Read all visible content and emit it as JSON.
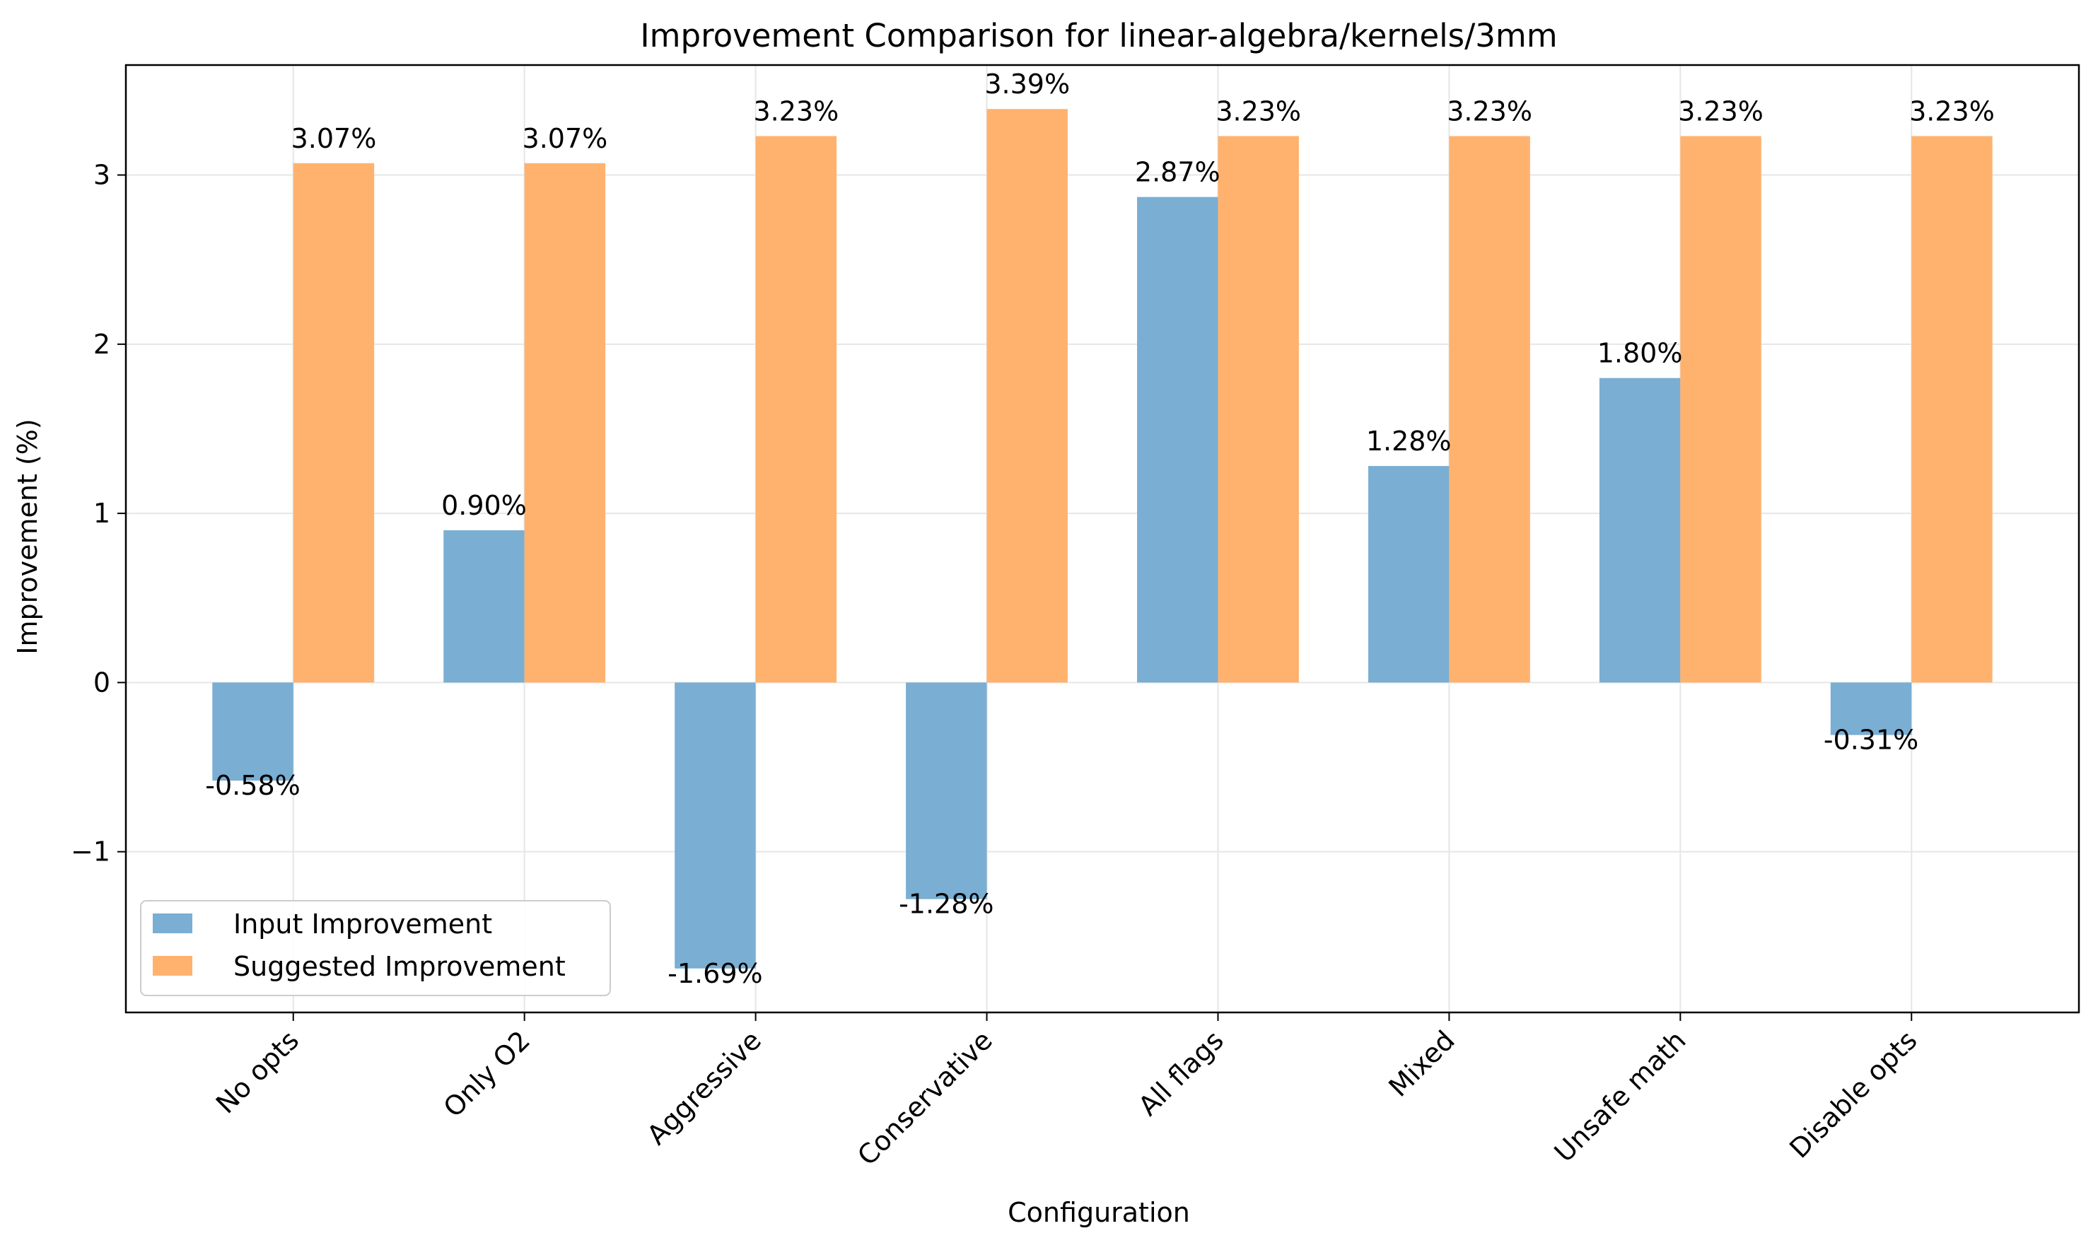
{
  "chart_data": {
    "type": "bar",
    "title": "Improvement Comparison for linear-algebra/kernels/3mm",
    "xlabel": "Configuration",
    "ylabel": "Improvement (%)",
    "categories": [
      "No opts",
      "Only O2",
      "Aggressive",
      "Conservative",
      "All flags",
      "Mixed",
      "Unsafe math",
      "Disable opts"
    ],
    "series": [
      {
        "name": "Input Improvement",
        "color": "#7aaed3",
        "values": [
          -0.58,
          0.9,
          -1.69,
          -1.28,
          2.87,
          1.28,
          1.8,
          -0.31
        ],
        "labels": [
          "-0.58%",
          "0.90%",
          "-1.69%",
          "-1.28%",
          "2.87%",
          "1.28%",
          "1.80%",
          "-0.31%"
        ]
      },
      {
        "name": "Suggested Improvement",
        "color": "#ffb26e",
        "values": [
          3.07,
          3.07,
          3.23,
          3.39,
          3.23,
          3.23,
          3.23,
          3.23
        ],
        "labels": [
          "3.07%",
          "3.07%",
          "3.23%",
          "3.39%",
          "3.23%",
          "3.23%",
          "3.23%",
          "3.23%"
        ]
      }
    ],
    "ylim": [
      -1.95,
      3.65
    ],
    "yticks": [
      -1,
      0,
      1,
      2,
      3
    ],
    "ytick_labels": [
      "−1",
      "0",
      "1",
      "2",
      "3"
    ],
    "grid": true,
    "legend_position": "lower-left"
  }
}
